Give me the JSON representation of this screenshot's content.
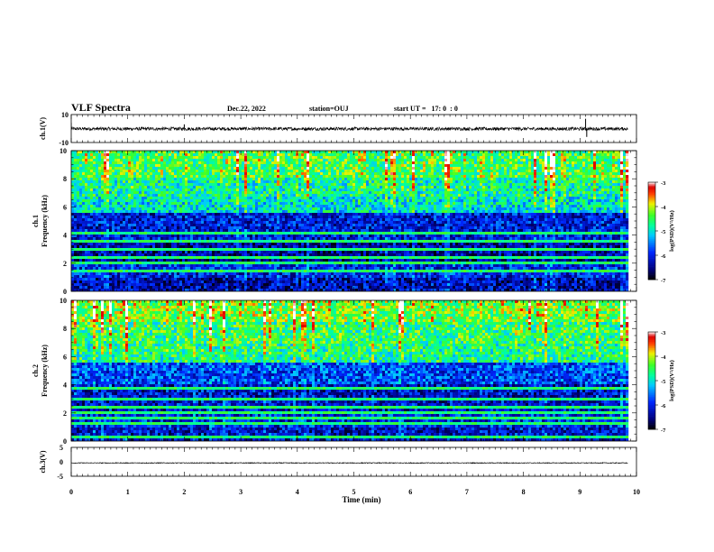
{
  "header": {
    "title": "VLF Spectra",
    "date": "Dec.22, 2022",
    "station": "station=OUJ",
    "start_time": "start UT =   17: 0  : 0"
  },
  "colorbar": {
    "label": "log(PSD)(V²/Hz)",
    "ticks": [
      "-3",
      "-4",
      "-5",
      "-6",
      "-7"
    ],
    "range": [
      -7,
      -3
    ]
  },
  "chart_data": [
    {
      "type": "line",
      "name": "ch1-waveform",
      "ylabel": "ch.1(V)",
      "ylim": [
        -10,
        10
      ],
      "ytick_labels": [
        "10",
        "-10"
      ],
      "xlim": [
        0,
        10
      ],
      "baseline": -0.2,
      "noise_amplitude": 1.2,
      "spikes": [
        {
          "t": 0.0,
          "v": 4
        },
        {
          "t": 2.0,
          "v": 3
        },
        {
          "t": 9.1,
          "v": 7
        },
        {
          "t": 9.12,
          "v": -6
        }
      ]
    },
    {
      "type": "heatmap",
      "name": "ch1-spectrogram",
      "ylabel": "ch.1\nFrequency (kHz)",
      "ylim": [
        0,
        10
      ],
      "ytick_labels": [
        "0",
        "2",
        "4",
        "6",
        "8",
        "10"
      ],
      "xlim": [
        0,
        10
      ],
      "value_range": [
        -7,
        -3
      ],
      "background_level": -5.9,
      "bands": [
        {
          "from": 0.0,
          "to": 1.0,
          "level": -6.3
        },
        {
          "from": 1.0,
          "to": 2.0,
          "level": -6.0
        },
        {
          "from": 2.0,
          "to": 3.5,
          "level": -6.4
        },
        {
          "from": 3.5,
          "to": 5.6,
          "level": -6.1
        },
        {
          "from": 5.6,
          "to": 6.8,
          "level": -5.0
        },
        {
          "from": 6.8,
          "to": 8.0,
          "level": -4.8
        },
        {
          "from": 8.0,
          "to": 10.0,
          "level": -4.5
        }
      ],
      "emphasized_frequencies_khz": [
        1.5,
        2.0,
        2.4,
        3.0,
        3.5,
        4.1,
        4.4
      ]
    },
    {
      "type": "heatmap",
      "name": "ch2-spectrogram",
      "ylabel": "ch.2\nFrequency (kHz)",
      "ylim": [
        0,
        10
      ],
      "ytick_labels": [
        "0",
        "2",
        "4",
        "6",
        "8",
        "10"
      ],
      "xlim": [
        0,
        10
      ],
      "value_range": [
        -7,
        -3
      ],
      "background_level": -5.9,
      "bands": [
        {
          "from": 0.0,
          "to": 1.0,
          "level": -6.2
        },
        {
          "from": 1.0,
          "to": 2.0,
          "level": -6.0
        },
        {
          "from": 2.0,
          "to": 4.0,
          "level": -6.2
        },
        {
          "from": 4.0,
          "to": 5.5,
          "level": -5.8
        },
        {
          "from": 5.5,
          "to": 7.0,
          "level": -4.7
        },
        {
          "from": 7.0,
          "to": 8.5,
          "level": -4.6
        },
        {
          "from": 8.5,
          "to": 10.0,
          "level": -4.3
        }
      ],
      "emphasized_frequencies_khz": [
        0.3,
        1.3,
        1.6,
        2.0,
        2.4,
        3.0,
        3.7,
        4.2
      ]
    },
    {
      "type": "line",
      "name": "ch3-waveform",
      "ylabel": "ch.3(V)",
      "ylim": [
        -5,
        5
      ],
      "ytick_labels": [
        "5",
        "0",
        "-5"
      ],
      "xlim": [
        0,
        10
      ],
      "baseline": -0.4,
      "noise_amplitude": 0.15,
      "spikes": []
    }
  ],
  "x_axis": {
    "label": "Time (min)",
    "ticks": [
      "0",
      "1",
      "2",
      "3",
      "4",
      "5",
      "6",
      "7",
      "8",
      "9",
      "10"
    ],
    "range": [
      0,
      10
    ],
    "data_end": 9.85
  }
}
